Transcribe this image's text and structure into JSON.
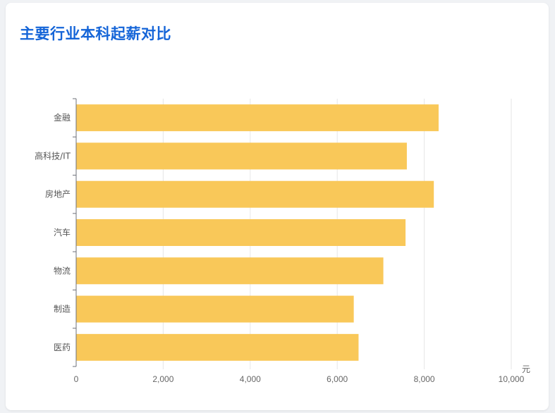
{
  "title": "主要行业本科起薪对比",
  "chart_data": {
    "type": "bar",
    "orientation": "horizontal",
    "categories": [
      "金融",
      "高科技/IT",
      "房地产",
      "汽车",
      "物流",
      "制造",
      "医药"
    ],
    "values": [
      8330,
      7600,
      8220,
      7570,
      7060,
      6380,
      6490
    ],
    "xlim": [
      0,
      10000
    ],
    "xticks": [
      0,
      2000,
      4000,
      6000,
      8000,
      10000
    ],
    "xtick_labels": [
      "0",
      "2,000",
      "4,000",
      "6,000",
      "8,000",
      "10,000"
    ],
    "xunit": "元",
    "bar_color": "#f9c859",
    "grid": true,
    "legend": "none"
  }
}
